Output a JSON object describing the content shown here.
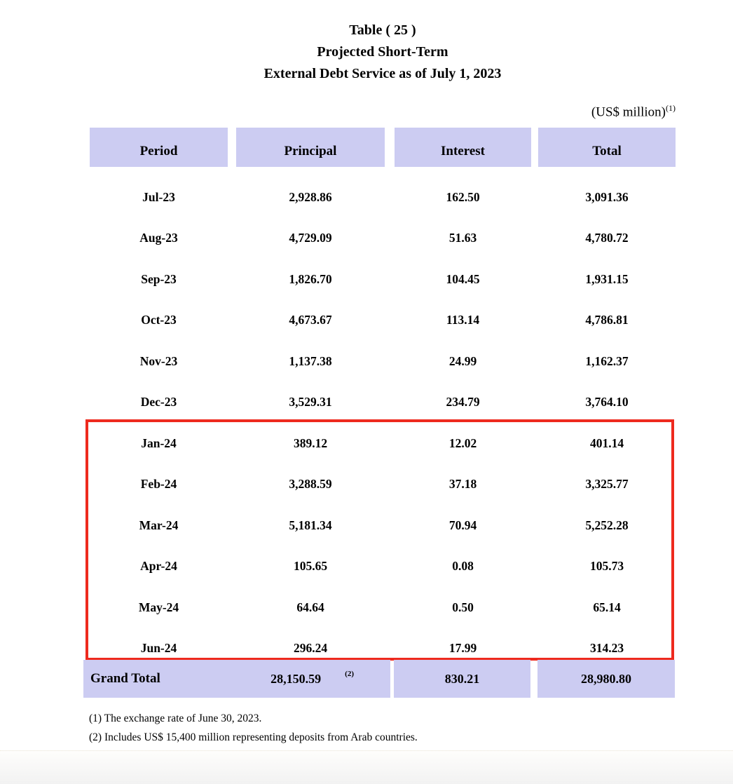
{
  "title": {
    "line1": "Table ( 25 )",
    "line2": "Projected Short-Term",
    "line3": "External Debt Service as of July 1, 2023"
  },
  "unit_note": {
    "text": "(US$ million)",
    "superscript": "(1)"
  },
  "table": {
    "columns": [
      "Period",
      "Principal",
      "Interest",
      "Total"
    ],
    "rows": [
      {
        "period": "Jul-23",
        "principal": "2,928.86",
        "interest": "162.50",
        "total": "3,091.36"
      },
      {
        "period": "Aug-23",
        "principal": "4,729.09",
        "interest": "51.63",
        "total": "4,780.72"
      },
      {
        "period": "Sep-23",
        "principal": "1,826.70",
        "interest": "104.45",
        "total": "1,931.15"
      },
      {
        "period": "Oct-23",
        "principal": "4,673.67",
        "interest": "113.14",
        "total": "4,786.81"
      },
      {
        "period": "Nov-23",
        "principal": "1,137.38",
        "interest": "24.99",
        "total": "1,162.37"
      },
      {
        "period": "Dec-23",
        "principal": "3,529.31",
        "interest": "234.79",
        "total": "3,764.10"
      },
      {
        "period": "Jan-24",
        "principal": "389.12",
        "interest": "12.02",
        "total": "401.14"
      },
      {
        "period": "Feb-24",
        "principal": "3,288.59",
        "interest": "37.18",
        "total": "3,325.77"
      },
      {
        "period": "Mar-24",
        "principal": "5,181.34",
        "interest": "70.94",
        "total": "5,252.28"
      },
      {
        "period": "Apr-24",
        "principal": "105.65",
        "interest": "0.08",
        "total": "105.73"
      },
      {
        "period": "May-24",
        "principal": "64.64",
        "interest": "0.50",
        "total": "65.14"
      },
      {
        "period": "Jun-24",
        "principal": "296.24",
        "interest": "17.99",
        "total": "314.23"
      }
    ],
    "highlighted_rows": [
      "Jan-24",
      "Feb-24",
      "Mar-24",
      "Apr-24",
      "May-24",
      "Jun-24"
    ],
    "grand_total": {
      "label": "Grand Total",
      "principal": "28,150.59",
      "principal_superscript": "(2)",
      "interest": "830.21",
      "total": "28,980.80"
    }
  },
  "footnotes": [
    "(1) The exchange rate of June 30, 2023.",
    "(2) Includes US$ 15,400 million representing deposits from Arab countries."
  ],
  "colors": {
    "header_bg": "#ccccf2",
    "highlight_border": "#ee2a1e"
  }
}
